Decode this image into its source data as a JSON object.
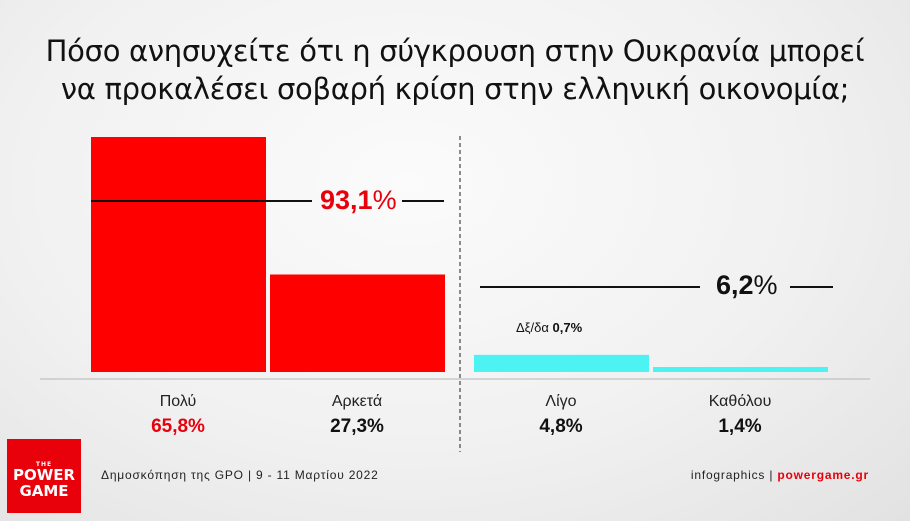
{
  "title_line1": "Πόσο ανησυχείτε ότι η σύγκρουση στην Ουκρανία μπορεί",
  "title_line2": "να προκαλέσει σοβαρή κρίση στην ελληνική οικονομία;",
  "chart_data": {
    "type": "bar",
    "categories": [
      "Πολύ",
      "Αρκετά",
      "Λίγο",
      "Καθόλου"
    ],
    "values": [
      65.8,
      27.3,
      4.8,
      1.4
    ],
    "value_labels": [
      "65,8%",
      "27,3%",
      "4,8%",
      "1,4%"
    ],
    "group_totals": [
      {
        "value": 93.1,
        "number": "93,1",
        "unit": "%",
        "color": "#e8000b"
      },
      {
        "value": 6.2,
        "number": "6,2",
        "unit": "%",
        "color": "#111111"
      }
    ],
    "bar_colors": [
      "#ff0000",
      "#ff0000",
      "#4df2f2",
      "#4df2f2"
    ],
    "dkna_label": "Δξ/δα",
    "dkna_value": "0,7%"
  },
  "footer": {
    "source": "Δημοσκόπηση της GPO | 9 - 11 Μαρτίου 2022",
    "credit": "infographics | ",
    "site": "powergame.gr"
  },
  "logo": {
    "the": "THE",
    "line1": "POWER",
    "line2": "GAME"
  },
  "colors": {
    "accent": "#e8000b",
    "cyan": "#4df2f2"
  }
}
